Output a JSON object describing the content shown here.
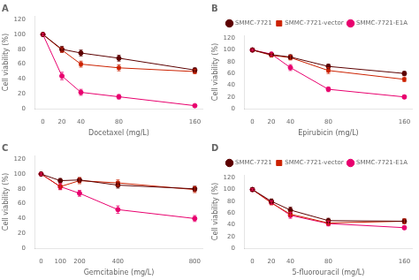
{
  "chart_data": [
    {
      "type": "line",
      "title": "A",
      "x_label": "Docetaxel (mg/L)",
      "y_label": "Cell viability (%)",
      "x": [
        0,
        20,
        40,
        80,
        160
      ],
      "xlim": [
        -8,
        168
      ],
      "xticks": [
        0,
        20,
        40,
        80,
        160
      ],
      "ylim": [
        0,
        125
      ],
      "yticks": [
        0,
        20,
        40,
        60,
        80,
        100,
        120
      ],
      "grid": false,
      "legend": false,
      "series": [
        {
          "name": "SMMC-7721",
          "color": "#5C0000",
          "marker": "circle",
          "line_style": "solid",
          "values": [
            100,
            80,
            75,
            68,
            52
          ],
          "yerr": [
            1.5,
            4,
            4,
            4,
            3
          ]
        },
        {
          "name": "SMMC-7721-vector",
          "color": "#CC2200",
          "marker": "square",
          "line_style": "solid",
          "values": [
            100,
            79,
            60,
            55,
            50
          ],
          "yerr": [
            1.5,
            3,
            4,
            4,
            3
          ]
        },
        {
          "name": "SMMC-7721-E1A",
          "color": "#E8006E",
          "marker": "circle",
          "line_style": "solid",
          "values": [
            100,
            44,
            22,
            16,
            4
          ],
          "yerr": [
            1.5,
            5,
            4,
            3,
            1
          ]
        }
      ]
    },
    {
      "type": "line",
      "title": "B",
      "x_label": "Epirubicin (mg/L)",
      "y_label": "Cell viability (%)",
      "x": [
        0,
        20,
        40,
        80,
        160
      ],
      "xlim": [
        -8,
        168
      ],
      "xticks": [
        0,
        20,
        40,
        80,
        160
      ],
      "ylim": [
        0,
        125
      ],
      "yticks": [
        0,
        20,
        40,
        60,
        80,
        100,
        120
      ],
      "grid": false,
      "legend": "upper right",
      "series": [
        {
          "name": "SMMC-7721",
          "color": "#5C0000",
          "marker": "circle",
          "line_style": "solid",
          "values": [
            100,
            92,
            88,
            72,
            60
          ],
          "yerr": [
            1.5,
            3,
            4,
            4,
            3.5
          ]
        },
        {
          "name": "SMMC-7721-vector",
          "color": "#CC2200",
          "marker": "square",
          "line_style": "solid",
          "values": [
            100,
            91,
            87,
            65,
            50
          ],
          "yerr": [
            1.5,
            3,
            4,
            5,
            4
          ]
        },
        {
          "name": "SMMC-7721-E1A",
          "color": "#E8006E",
          "marker": "circle",
          "line_style": "solid",
          "values": [
            100,
            93,
            70,
            33,
            20
          ],
          "yerr": [
            1.5,
            3,
            5,
            4,
            3
          ]
        }
      ]
    },
    {
      "type": "line",
      "title": "C",
      "x_label": "Gemcitabine (mg/L)",
      "y_label": "Cell viability (%)",
      "x": [
        0,
        100,
        200,
        400,
        800
      ],
      "xlim": [
        -30,
        840
      ],
      "xticks": [
        0,
        100,
        200,
        400,
        800
      ],
      "ylim": [
        0,
        125
      ],
      "yticks": [
        0,
        20,
        40,
        60,
        80,
        100,
        120
      ],
      "grid": false,
      "legend": false,
      "series": [
        {
          "name": "SMMC-7721",
          "color": "#5C0000",
          "marker": "circle",
          "line_style": "solid",
          "values": [
            100,
            91,
            92,
            85,
            80
          ],
          "yerr": [
            1.5,
            3,
            3,
            4,
            3.5
          ]
        },
        {
          "name": "SMMC-7721-vector",
          "color": "#CC2200",
          "marker": "square",
          "line_style": "solid",
          "values": [
            100,
            83,
            91,
            88,
            79
          ],
          "yerr": [
            1.5,
            4,
            4,
            4,
            4
          ]
        },
        {
          "name": "SMMC-7721-E1A",
          "color": "#E8006E",
          "marker": "circle",
          "line_style": "solid",
          "values": [
            100,
            83,
            74,
            52,
            40
          ],
          "yerr": [
            1.5,
            4,
            4,
            5,
            4
          ]
        }
      ]
    },
    {
      "type": "line",
      "title": "D",
      "x_label": "5-fluorouracil (mg/L)",
      "y_label": "Cell viability (%)",
      "x": [
        0,
        20,
        40,
        80,
        160
      ],
      "xlim": [
        -8,
        168
      ],
      "xticks": [
        0,
        20,
        40,
        80,
        160
      ],
      "ylim": [
        0,
        125
      ],
      "yticks": [
        0,
        20,
        40,
        60,
        80,
        100,
        120
      ],
      "grid": false,
      "legend": "upper right",
      "series": [
        {
          "name": "SMMC-7721",
          "color": "#5C0000",
          "marker": "circle",
          "line_style": "solid",
          "values": [
            100,
            80,
            65,
            47,
            46
          ],
          "yerr": [
            1.5,
            4,
            5,
            4,
            4
          ]
        },
        {
          "name": "SMMC-7721-vector",
          "color": "#CC2200",
          "marker": "square",
          "line_style": "solid",
          "values": [
            100,
            77,
            58,
            43,
            46
          ],
          "yerr": [
            1.5,
            3,
            4,
            4,
            4
          ]
        },
        {
          "name": "SMMC-7721-E1A",
          "color": "#E8006E",
          "marker": "circle",
          "line_style": "solid",
          "values": [
            100,
            78,
            56,
            42,
            35
          ],
          "yerr": [
            1.5,
            3,
            5,
            4,
            3
          ]
        }
      ]
    }
  ]
}
